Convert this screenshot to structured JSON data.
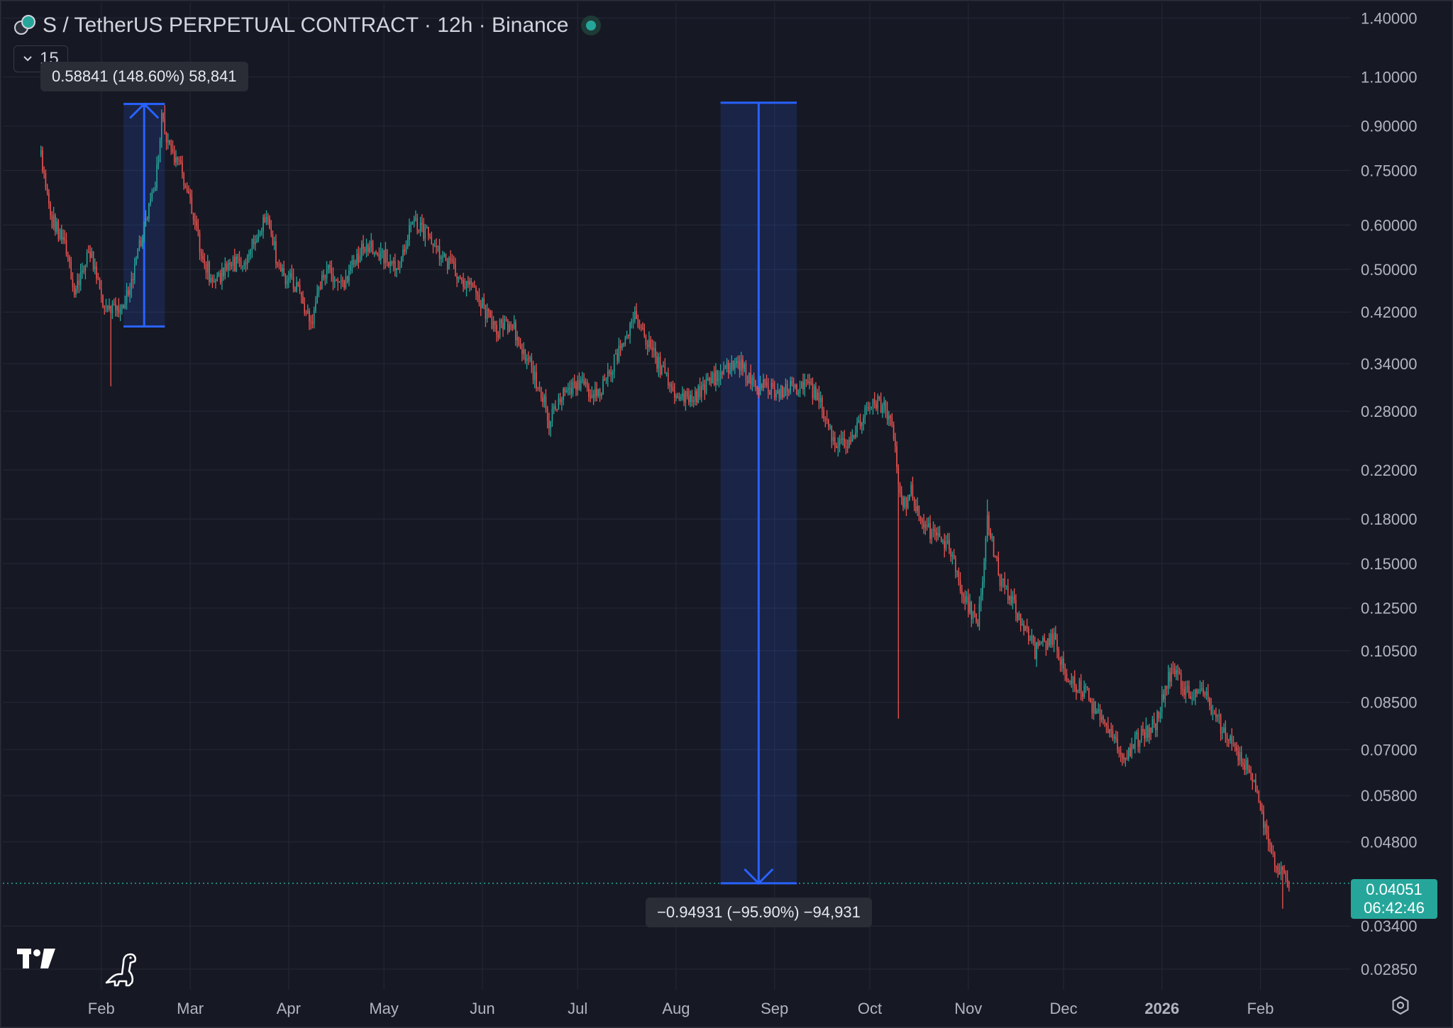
{
  "header": {
    "title": "S / TetherUS PERPETUAL CONTRACT · 12h · Binance",
    "collapse_count": "15"
  },
  "measurements": [
    {
      "label": "0.58841 (148.60%) 58,841",
      "from": 0.396,
      "to": 0.985,
      "start": "2025-02-08",
      "end": "2025-02-21",
      "direction": "up"
    },
    {
      "label": "−0.94931 (−95.90%) −94,931",
      "from": 0.99,
      "to": 0.04051,
      "start": "2025-08-15",
      "end": "2025-09-08",
      "direction": "down"
    }
  ],
  "current_price": {
    "value": "0.04051",
    "countdown": "06:42:46",
    "color": "#26a69a"
  },
  "icons": {
    "symbol": "symbol-pair-icon",
    "live": "live-status-icon",
    "collapse": "chevron-down-icon",
    "logo": "tradingview-logo-icon",
    "dino": "dinosaur-icon",
    "settings": "gear-icon"
  },
  "colors": {
    "background": "#161924",
    "grid": "#232733",
    "up": "#26a69a",
    "down": "#ef5350",
    "measure": "#2962ff"
  },
  "chart_data": {
    "type": "candlestick",
    "title": "S / TetherUS PERPETUAL CONTRACT · 12h · Binance",
    "interval": "12h",
    "yscale": "log",
    "ylim": [
      0.0262,
      1.49
    ],
    "xlim": [
      "2025-01-01",
      "2026-02-25"
    ],
    "grid": true,
    "y_ticks": [
      "1.40000",
      "1.10000",
      "0.90000",
      "0.75000",
      "0.60000",
      "0.50000",
      "0.42000",
      "0.34000",
      "0.28000",
      "0.22000",
      "0.18000",
      "0.15000",
      "0.12500",
      "0.10500",
      "0.08500",
      "0.07000",
      "0.05800",
      "0.04800",
      "0.03400",
      "0.02850"
    ],
    "x_ticks": [
      {
        "label": "Feb",
        "date": "2025-02-01"
      },
      {
        "label": "Mar",
        "date": "2025-03-01"
      },
      {
        "label": "Apr",
        "date": "2025-04-01"
      },
      {
        "label": "May",
        "date": "2025-05-01"
      },
      {
        "label": "Jun",
        "date": "2025-06-01"
      },
      {
        "label": "Jul",
        "date": "2025-07-01"
      },
      {
        "label": "Aug",
        "date": "2025-08-01"
      },
      {
        "label": "Sep",
        "date": "2025-09-01"
      },
      {
        "label": "Oct",
        "date": "2025-10-01"
      },
      {
        "label": "Nov",
        "date": "2025-11-01"
      },
      {
        "label": "Dec",
        "date": "2025-12-01"
      },
      {
        "label": "2026",
        "date": "2026-01-01",
        "bold": true
      },
      {
        "label": "Feb",
        "date": "2026-02-01"
      }
    ],
    "price_path": [
      [
        "2025-01-13",
        0.8
      ],
      [
        "2025-01-16",
        0.62
      ],
      [
        "2025-01-20",
        0.56
      ],
      [
        "2025-01-24",
        0.45
      ],
      [
        "2025-01-28",
        0.55
      ],
      [
        "2025-02-02",
        0.43
      ],
      [
        "2025-02-06",
        0.42
      ],
      [
        "2025-02-10",
        0.46
      ],
      [
        "2025-02-14",
        0.58
      ],
      [
        "2025-02-18",
        0.7
      ],
      [
        "2025-02-20",
        0.92
      ],
      [
        "2025-02-23",
        0.82
      ],
      [
        "2025-02-27",
        0.73
      ],
      [
        "2025-03-04",
        0.55
      ],
      [
        "2025-03-08",
        0.47
      ],
      [
        "2025-03-12",
        0.5
      ],
      [
        "2025-03-18",
        0.52
      ],
      [
        "2025-03-25",
        0.62
      ],
      [
        "2025-03-29",
        0.5
      ],
      [
        "2025-04-04",
        0.46
      ],
      [
        "2025-04-08",
        0.4
      ],
      [
        "2025-04-12",
        0.5
      ],
      [
        "2025-04-18",
        0.47
      ],
      [
        "2025-04-25",
        0.55
      ],
      [
        "2025-05-01",
        0.53
      ],
      [
        "2025-05-05",
        0.5
      ],
      [
        "2025-05-10",
        0.6
      ],
      [
        "2025-05-15",
        0.58
      ],
      [
        "2025-05-20",
        0.52
      ],
      [
        "2025-05-26",
        0.48
      ],
      [
        "2025-06-01",
        0.43
      ],
      [
        "2025-06-05",
        0.39
      ],
      [
        "2025-06-10",
        0.4
      ],
      [
        "2025-06-15",
        0.35
      ],
      [
        "2025-06-20",
        0.3
      ],
      [
        "2025-06-22",
        0.27
      ],
      [
        "2025-06-27",
        0.31
      ],
      [
        "2025-07-02",
        0.31
      ],
      [
        "2025-07-08",
        0.3
      ],
      [
        "2025-07-14",
        0.36
      ],
      [
        "2025-07-19",
        0.41
      ],
      [
        "2025-07-24",
        0.36
      ],
      [
        "2025-07-30",
        0.31
      ],
      [
        "2025-08-05",
        0.29
      ],
      [
        "2025-08-10",
        0.31
      ],
      [
        "2025-08-16",
        0.33
      ],
      [
        "2025-08-21",
        0.34
      ],
      [
        "2025-08-26",
        0.31
      ],
      [
        "2025-09-02",
        0.305
      ],
      [
        "2025-09-10",
        0.31
      ],
      [
        "2025-09-15",
        0.3
      ],
      [
        "2025-09-20",
        0.24
      ],
      [
        "2025-09-25",
        0.25
      ],
      [
        "2025-09-30",
        0.28
      ],
      [
        "2025-10-04",
        0.29
      ],
      [
        "2025-10-08",
        0.27
      ],
      [
        "2025-10-11",
        0.19
      ],
      [
        "2025-10-14",
        0.2
      ],
      [
        "2025-10-20",
        0.17
      ],
      [
        "2025-10-26",
        0.16
      ],
      [
        "2025-10-30",
        0.135
      ],
      [
        "2025-11-04",
        0.115
      ],
      [
        "2025-11-07",
        0.18
      ],
      [
        "2025-11-11",
        0.14
      ],
      [
        "2025-11-16",
        0.125
      ],
      [
        "2025-11-22",
        0.105
      ],
      [
        "2025-11-28",
        0.11
      ],
      [
        "2025-12-02",
        0.095
      ],
      [
        "2025-12-08",
        0.088
      ],
      [
        "2025-12-14",
        0.076
      ],
      [
        "2025-12-20",
        0.068
      ],
      [
        "2025-12-26",
        0.075
      ],
      [
        "2025-12-30",
        0.078
      ],
      [
        "2026-01-04",
        0.098
      ],
      [
        "2026-01-09",
        0.088
      ],
      [
        "2026-01-14",
        0.09
      ],
      [
        "2026-01-20",
        0.076
      ],
      [
        "2026-01-25",
        0.068
      ],
      [
        "2026-01-29",
        0.064
      ],
      [
        "2026-02-02",
        0.052
      ],
      [
        "2026-02-06",
        0.044
      ],
      [
        "2026-02-10",
        0.0405
      ]
    ],
    "extremes": [
      {
        "date": "2025-02-04",
        "low": 0.31
      },
      {
        "date": "2025-02-21",
        "high": 0.98
      },
      {
        "date": "2025-06-22",
        "low": 0.255
      },
      {
        "date": "2025-10-10",
        "low": 0.0795
      },
      {
        "date": "2025-11-07",
        "high": 0.195
      },
      {
        "date": "2026-02-08",
        "low": 0.0365
      }
    ],
    "last_price": 0.04051
  }
}
